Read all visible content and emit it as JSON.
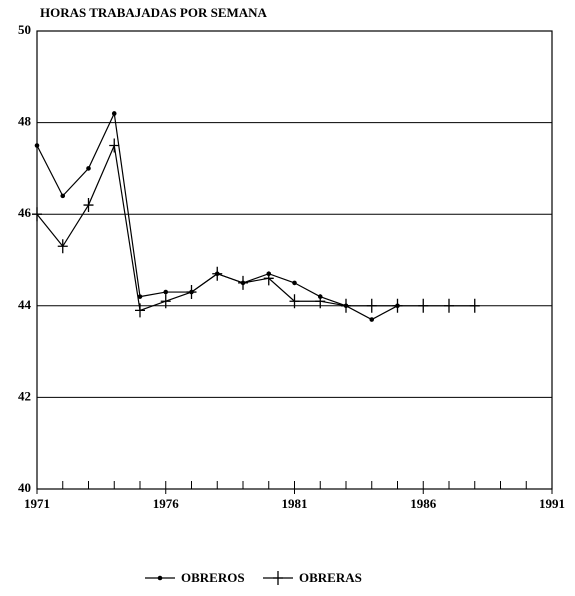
{
  "chart_data": {
    "type": "line",
    "title": "HORAS TRABAJADAS POR SEMANA",
    "x": [
      1971,
      1972,
      1973,
      1974,
      1975,
      1976,
      1977,
      1978,
      1979,
      1980,
      1981,
      1982,
      1983,
      1984,
      1985,
      1986,
      1987,
      1988
    ],
    "series": [
      {
        "name": "OBREROS",
        "color": "#000000",
        "marker": "dot",
        "values": [
          47.5,
          46.4,
          47.0,
          48.2,
          44.2,
          44.3,
          44.3,
          44.7,
          44.5,
          44.7,
          44.5,
          44.2,
          44.0,
          43.7,
          44.0,
          null,
          null,
          null
        ]
      },
      {
        "name": "OBRERAS",
        "color": "#000000",
        "marker": "plus",
        "values": [
          46.0,
          45.3,
          46.2,
          47.5,
          43.9,
          44.1,
          44.3,
          44.7,
          44.5,
          44.6,
          44.1,
          44.1,
          44.0,
          44.0,
          44.0,
          44.0,
          44.0,
          44.0
        ]
      }
    ],
    "xlim": [
      1971,
      1991
    ],
    "xticks": [
      1971,
      1976,
      1981,
      1986,
      1991
    ],
    "ylim": [
      40,
      50
    ],
    "yticks": [
      40,
      42,
      44,
      46,
      48,
      50
    ],
    "grid": true,
    "legend": "bottom"
  }
}
